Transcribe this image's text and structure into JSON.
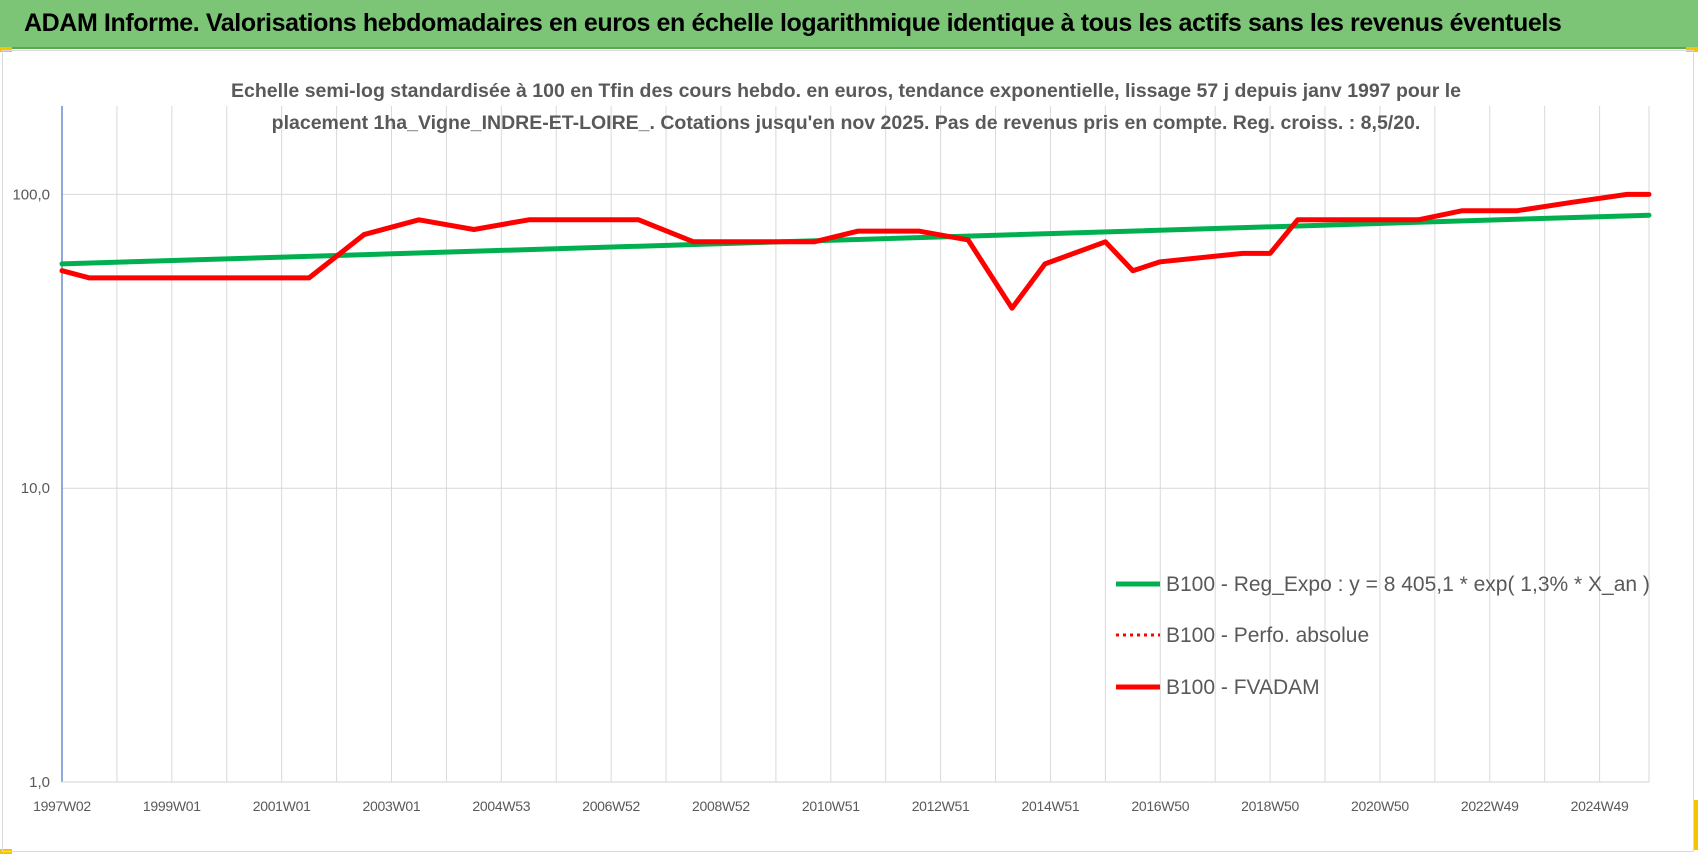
{
  "header": {
    "title": "ADAM Informe. Valorisations hebdomadaires en euros en échelle logarithmique identique à tous les actifs sans les revenus éventuels"
  },
  "colors": {
    "header_bg": "#7cc576",
    "regression": "#00b050",
    "series": "#ff0000",
    "gridline": "#d9d9d9",
    "axis": "#4472c4"
  },
  "chart_data": {
    "type": "line",
    "title_line1": "Echelle semi-log standardisée à 100 en Tfin des cours hebdo. en euros, tendance exponentielle, lissage 57 j depuis janv 1997 pour le",
    "title_line2": "placement 1ha_Vigne_INDRE-ET-LOIRE_. Cotations jusqu'en nov 2025. Pas de revenus pris en compte. Reg. croiss. : 8,5/20.",
    "y_scale": "log",
    "ylim": [
      1,
      200
    ],
    "y_ticks": [
      {
        "value": 1,
        "label": "1,0"
      },
      {
        "value": 10,
        "label": "10,0"
      },
      {
        "value": 100,
        "label": "100,0"
      }
    ],
    "xlim": [
      1997.0,
      2025.9
    ],
    "x_ticks": [
      {
        "x": 1997.0,
        "label": "1997W02"
      },
      {
        "x": 1999.0,
        "label": "1999W01"
      },
      {
        "x": 2001.0,
        "label": "2001W01"
      },
      {
        "x": 2003.0,
        "label": "2003W01"
      },
      {
        "x": 2005.0,
        "label": "2004W53"
      },
      {
        "x": 2007.0,
        "label": "2006W52"
      },
      {
        "x": 2009.0,
        "label": "2008W52"
      },
      {
        "x": 2011.0,
        "label": "2010W51"
      },
      {
        "x": 2013.0,
        "label": "2012W51"
      },
      {
        "x": 2015.0,
        "label": "2014W51"
      },
      {
        "x": 2017.0,
        "label": "2016W50"
      },
      {
        "x": 2019.0,
        "label": "2018W50"
      },
      {
        "x": 2021.0,
        "label": "2020W50"
      },
      {
        "x": 2023.0,
        "label": "2022W49"
      },
      {
        "x": 2025.0,
        "label": "2024W49"
      }
    ],
    "legend_position": "bottom-right",
    "series": [
      {
        "name": "B100 - Reg_Expo : y = 8 405,1 * exp( 1,3% *  X_an )",
        "style": "solid-green",
        "x": [
          1997.0,
          2025.9
        ],
        "y": [
          58,
          85
        ]
      },
      {
        "name": "B100 - Perfo. absolue",
        "style": "dotted-red",
        "x": [],
        "y": []
      },
      {
        "name": "B100 - FVADAM",
        "style": "solid-red",
        "x": [
          1997.0,
          1997.5,
          2001.5,
          2002.5,
          2003.5,
          2004.5,
          2005.5,
          2007.5,
          2008.5,
          2010.7,
          2011.5,
          2012.6,
          2013.5,
          2014.3,
          2014.9,
          2016.0,
          2016.5,
          2017.0,
          2018.5,
          2019.0,
          2019.5,
          2021.0,
          2021.7,
          2022.5,
          2023.5,
          2024.5,
          2025.5,
          2025.9
        ],
        "y": [
          55,
          52,
          52,
          73,
          82,
          76,
          82,
          82,
          69,
          69,
          75,
          75,
          70,
          41,
          58,
          69,
          55,
          59,
          63,
          63,
          82,
          82,
          82,
          88,
          88,
          94,
          100,
          100
        ]
      }
    ]
  }
}
